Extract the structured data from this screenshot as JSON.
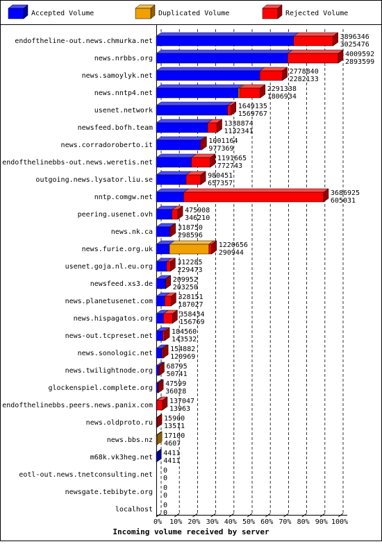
{
  "chart_data": {
    "type": "bar",
    "orientation": "horizontal",
    "stacked": true,
    "x_label": "Incoming volume received by server",
    "legend": "top",
    "grid": true,
    "categories": [
      "endoftheline-out.news.chmurka.net",
      "news.nrbbs.org",
      "news.samoylyk.net",
      "news.nntp4.net",
      "usenet.network",
      "newsfeed.bofh.team",
      "news.corradoroberto.it",
      "endofthelinebbs-out.news.weretis.net",
      "outgoing.news.lysator.liu.se",
      "nntp.comgw.net",
      "peering.usenet.ovh",
      "news.nk.ca",
      "news.furie.org.uk",
      "usenet.goja.nl.eu.org",
      "newsfeed.xs3.de",
      "news.planetusenet.com",
      "news.hispagatos.org",
      "news-out.tcpreset.net",
      "news.sonologic.net",
      "news.twilightnode.org",
      "glockenspiel.complete.org",
      "endofthelinebbs.peers.news.panix.com",
      "news.oldproto.ru",
      "news.bbs.nz",
      "m68k.vk3heg.net",
      "eotl-out.news.tnetconsulting.net",
      "newsgate.tebibyte.org",
      "localhost"
    ],
    "totals": [
      3896346,
      4009592,
      2778840,
      2291338,
      1649135,
      1338874,
      1001164,
      1191665,
      980451,
      3686925,
      475908,
      318750,
      1220656,
      312285,
      209952,
      328151,
      358434,
      184560,
      154882,
      68795,
      47599,
      137047,
      15900,
      17100,
      4411,
      0,
      0,
      0
    ],
    "series": [
      {
        "name": "Accepted Volume",
        "color": "#0000ff",
        "values": [
          3025476,
          2893599,
          2282133,
          1806934,
          1569767,
          1132341,
          977369,
          772743,
          657357,
          605031,
          346210,
          298596,
          290944,
          229473,
          203250,
          187027,
          156769,
          143532,
          120969,
          50741,
          36028,
          13963,
          13511,
          4607,
          4411,
          0,
          0,
          0
        ]
      },
      {
        "name": "Duplicated Volume",
        "color": "#f0a000",
        "values": [
          0,
          0,
          0,
          30000,
          0,
          0,
          0,
          0,
          0,
          0,
          0,
          0,
          870000,
          0,
          0,
          0,
          0,
          0,
          10000,
          0,
          0,
          0,
          0,
          12493,
          0,
          0,
          0,
          0
        ]
      },
      {
        "name": "Rejected Volume",
        "color": "#ff0000",
        "values": [
          870870,
          1115993,
          496707,
          454404,
          79368,
          206533,
          23795,
          418922,
          323094,
          3081894,
          129698,
          20154,
          59712,
          82812,
          6702,
          141124,
          201665,
          41028,
          23913,
          18054,
          11571,
          123084,
          2389,
          0,
          0,
          0,
          0,
          0
        ]
      }
    ],
    "xlim": [
      0,
      4009592
    ],
    "xticks": [
      {
        "value": 0,
        "label": "0%"
      },
      {
        "value": 400959.2,
        "label": "10%"
      },
      {
        "value": 801918.4,
        "label": "20%"
      },
      {
        "value": 1202877.6,
        "label": "30%"
      },
      {
        "value": 1603836.8,
        "label": "40%"
      },
      {
        "value": 2004796,
        "label": "50%"
      },
      {
        "value": 2405755.2,
        "label": "60%"
      },
      {
        "value": 2806714.4,
        "label": "70%"
      },
      {
        "value": 3207673.6,
        "label": "80%"
      },
      {
        "value": 3608632.8,
        "label": "90%"
      },
      {
        "value": 4009592,
        "label": "100%"
      }
    ]
  }
}
